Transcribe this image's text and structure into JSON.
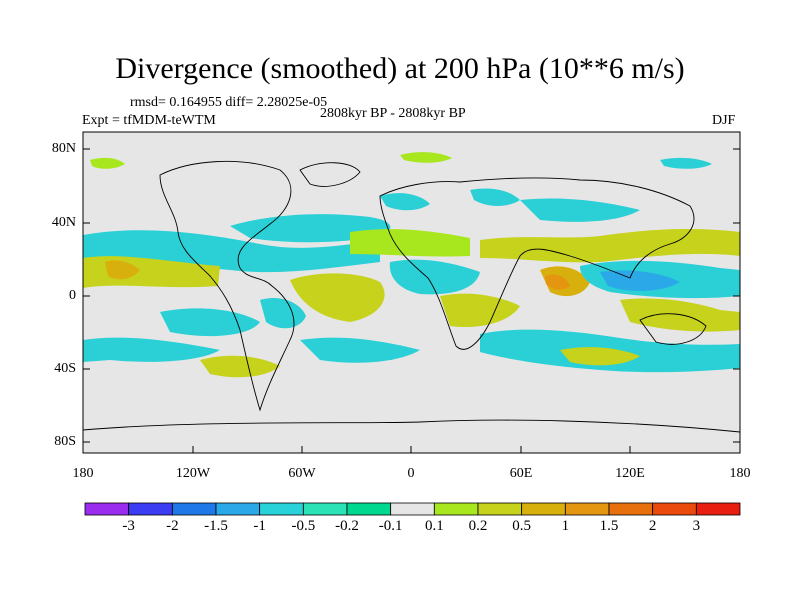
{
  "title": "Divergence (smoothed) at 200 hPa (10**6 m/s)",
  "stats": "rmsd= 0.164955 diff= 2.28025e-05",
  "experiment": "Expt = tfMDM-teWTM",
  "period": "2808kyr BP - 2808kyr BP",
  "season": "DJF",
  "axes": {
    "y_labels": [
      "80N",
      "40N",
      "0",
      "40S",
      "80S"
    ],
    "x_labels": [
      "180",
      "120W",
      "60W",
      "0",
      "60E",
      "120E",
      "180"
    ]
  },
  "colorbar": {
    "colors": [
      "#9a2cf0",
      "#3c3cf2",
      "#1e78e8",
      "#2aa8e8",
      "#28d2d8",
      "#2ae2b6",
      "#00d890",
      "#e6e6e6",
      "#a8e61e",
      "#c6d21c",
      "#d8b00e",
      "#e49610",
      "#e8700c",
      "#ea4a0c",
      "#e81e10"
    ],
    "labels": [
      "-3",
      "-2",
      "-1.5",
      "-1",
      "-0.5",
      "-0.2",
      "-0.1",
      "0.1",
      "0.2",
      "0.5",
      "1",
      "1.5",
      "2",
      "3"
    ]
  }
}
